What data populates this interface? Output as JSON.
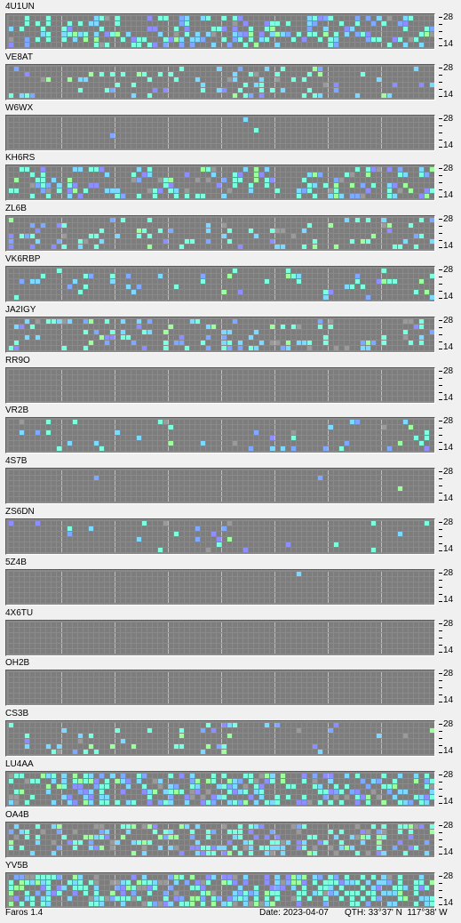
{
  "app": {
    "name": "Faros 1.4",
    "date_label": "Date:",
    "date": "2023-04-07",
    "qth_label": "QTH:",
    "qth": "33°37' N  117°38' W"
  },
  "axis": {
    "upper": "28",
    "lower": "14"
  },
  "palette": {
    "background": "#7d7d7d",
    "c1": "#7fffe0",
    "c2": "#7fd8ff",
    "c3": "#7fa9ff",
    "c4": "#9fff9f",
    "c5": "#9a9a9a",
    "c6": "#8e8eff"
  },
  "stations": [
    {
      "callsign": "4U1UN"
    },
    {
      "callsign": "VE8AT"
    },
    {
      "callsign": "W6WX"
    },
    {
      "callsign": "KH6RS"
    },
    {
      "callsign": "ZL6B"
    },
    {
      "callsign": "VK6RBP"
    },
    {
      "callsign": "JA2IGY"
    },
    {
      "callsign": "RR9O"
    },
    {
      "callsign": "VR2B"
    },
    {
      "callsign": "4S7B"
    },
    {
      "callsign": "ZS6DN"
    },
    {
      "callsign": "5Z4B"
    },
    {
      "callsign": "4X6TU"
    },
    {
      "callsign": "OH2B"
    },
    {
      "callsign": "CS3B"
    },
    {
      "callsign": "LU4AA"
    },
    {
      "callsign": "OA4B"
    },
    {
      "callsign": "YV5B"
    }
  ]
}
